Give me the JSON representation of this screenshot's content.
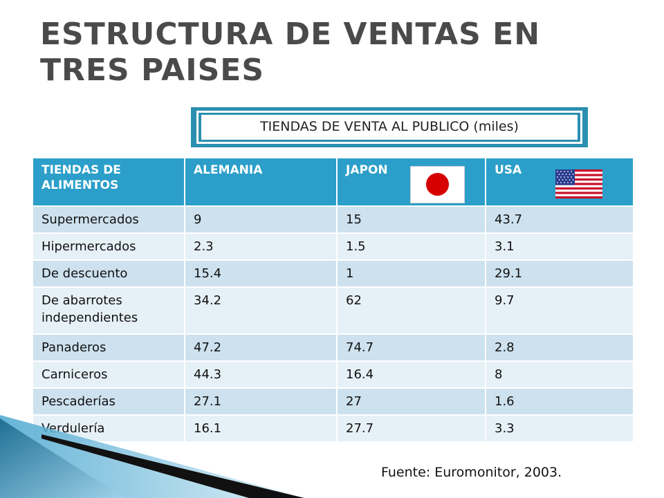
{
  "title": "ESTRUCTURA DE VENTAS EN TRES PAISES",
  "subtitle": "TIENDAS DE VENTA AL PUBLICO (miles)",
  "table": {
    "headers": [
      "TIENDAS DE ALIMENTOS",
      "ALEMANIA",
      "JAPON",
      "USA"
    ],
    "rows": [
      [
        "Supermercados",
        "9",
        "15",
        "43.7"
      ],
      [
        "Hipermercados",
        "2.3",
        "1.5",
        "3.1"
      ],
      [
        "De descuento",
        "15.4",
        "1",
        "29.1"
      ],
      [
        "De abarrotes independientes",
        "34.2",
        "62",
        "9.7"
      ],
      [
        "Panaderos",
        "47.2",
        "74.7",
        "2.8"
      ],
      [
        "Carniceros",
        "44.3",
        "16.4",
        "8"
      ],
      [
        "Pescaderías",
        "27.1",
        "27",
        "1.6"
      ],
      [
        "Verdulería",
        "16.1",
        "27.7",
        "3.3"
      ]
    ]
  },
  "source": "Fuente: Euromonitor, 2003.",
  "colors": {
    "header_bg": "#2b9fc9",
    "row_odd": "#cde1ee",
    "row_even": "#e6f0f7",
    "title": "#4a4a4a",
    "frame": "#2b8fb0"
  },
  "icons": [
    "japan-flag-icon",
    "usa-flag-icon"
  ]
}
